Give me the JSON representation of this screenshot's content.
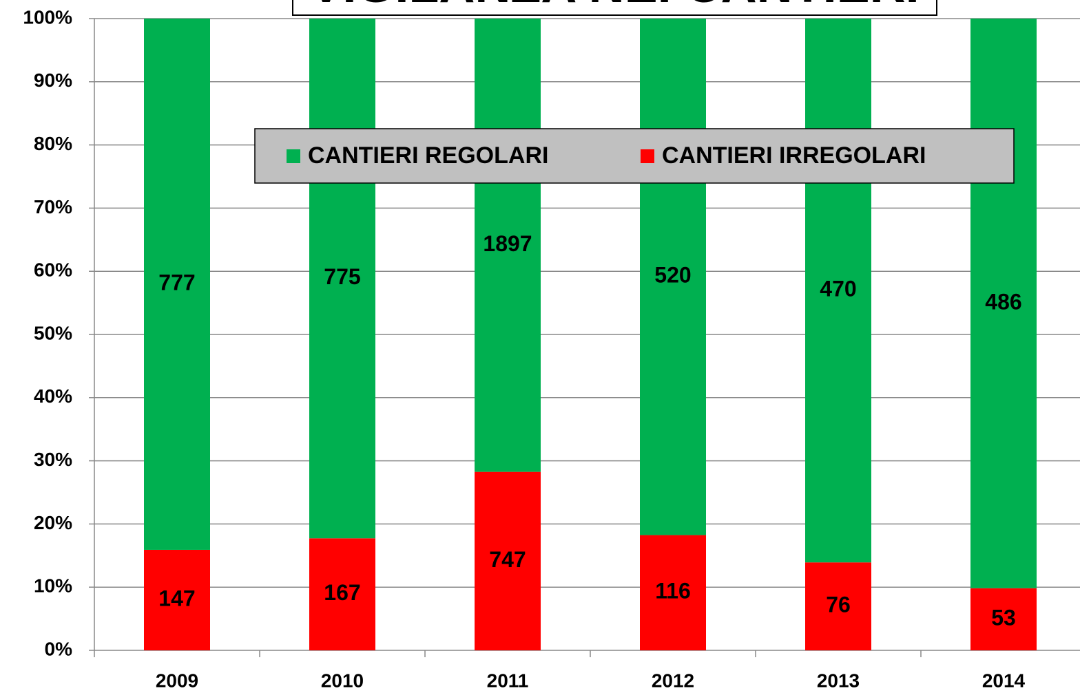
{
  "chart_data": {
    "type": "percent_stacked_bar",
    "title": "VIGILANZA NEI CANTIERI",
    "categories": [
      "2009",
      "2010",
      "2011",
      "2012",
      "2013",
      "2014"
    ],
    "series": [
      {
        "name": "CANTIERI IRREGOLARI",
        "color": "#ff0000",
        "values": [
          147,
          167,
          747,
          116,
          76,
          53
        ]
      },
      {
        "name": "CANTIERI REGOLARI",
        "color": "#00b050",
        "values": [
          777,
          775,
          1897,
          520,
          470,
          486
        ]
      }
    ],
    "ylim": [
      0,
      100
    ],
    "yticks": [
      {
        "value": 0,
        "label": "0%"
      },
      {
        "value": 10,
        "label": "10%"
      },
      {
        "value": 20,
        "label": "20%"
      },
      {
        "value": 30,
        "label": "30%"
      },
      {
        "value": 40,
        "label": "40%"
      },
      {
        "value": 50,
        "label": "50%"
      },
      {
        "value": 60,
        "label": "60%"
      },
      {
        "value": 70,
        "label": "70%"
      },
      {
        "value": 80,
        "label": "80%"
      },
      {
        "value": 90,
        "label": "90%"
      },
      {
        "value": 100,
        "label": "100%"
      }
    ],
    "grid": true,
    "legend": "top"
  }
}
